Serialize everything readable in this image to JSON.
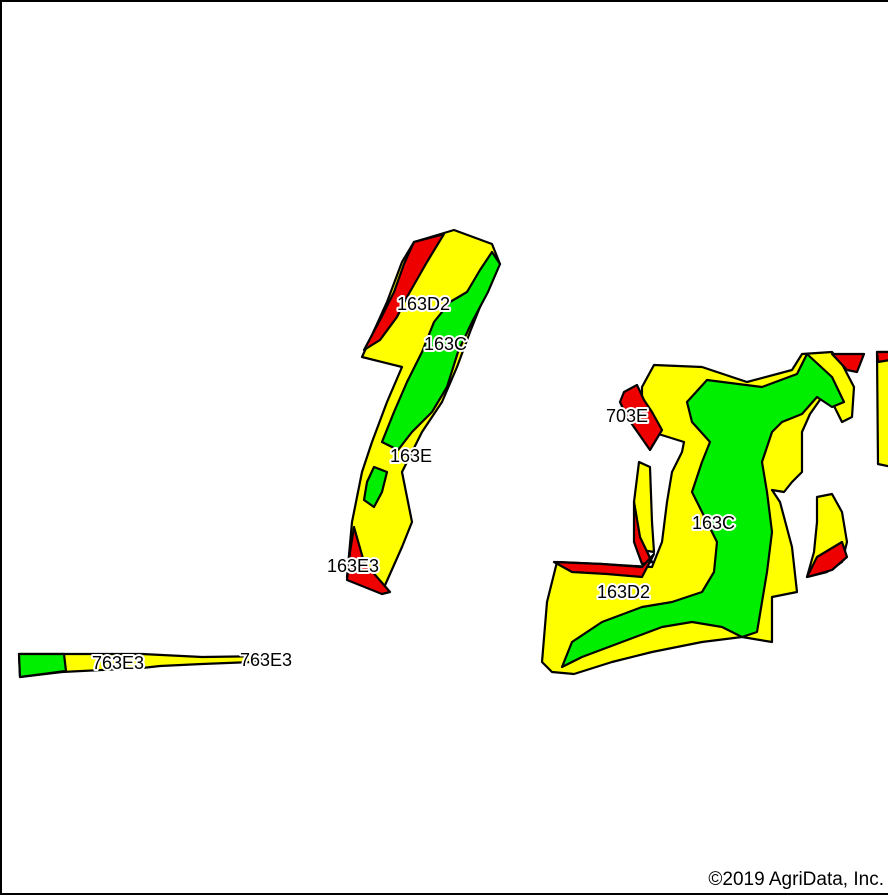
{
  "colors": {
    "green": "#00ee00",
    "yellow": "#ffff00",
    "red": "#ee0000",
    "outline": "#000000"
  },
  "labels": {
    "field1_163D2": "163D2",
    "field1_163C": "163C",
    "field1_163E": "163E",
    "field1_163E3": "163E3",
    "field2_703E": "703E",
    "field2_163C": "163C",
    "field2_163D2": "163D2",
    "strip_763E3_a": "763E3",
    "strip_763E3_b": "763E3"
  },
  "copyright": "©2019 AgriData, Inc."
}
